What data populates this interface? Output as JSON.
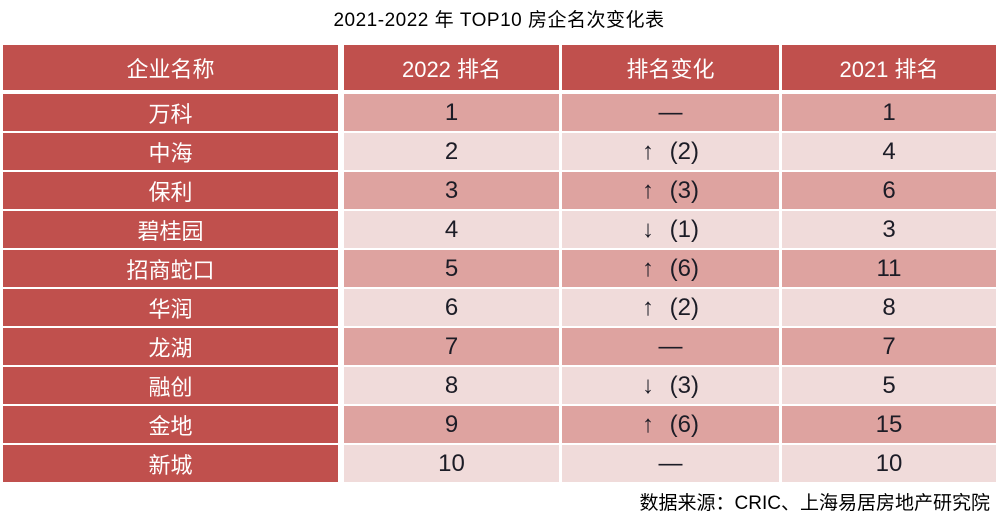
{
  "chart_data": {
    "type": "table",
    "title": "2021-2022 年 TOP10 房企名次变化表",
    "columns": [
      "企业名称",
      "2022 排名",
      "排名变化",
      "2021 排名"
    ],
    "rows": [
      {
        "name": "万科",
        "rank_2022": "1",
        "change": "—",
        "rank_2021": "1"
      },
      {
        "name": "中海",
        "rank_2022": "2",
        "change": "↑ (2)",
        "rank_2021": "4"
      },
      {
        "name": "保利",
        "rank_2022": "3",
        "change": "↑ (3)",
        "rank_2021": "6"
      },
      {
        "name": "碧桂园",
        "rank_2022": "4",
        "change": "↓ (1)",
        "rank_2021": "3"
      },
      {
        "name": "招商蛇口",
        "rank_2022": "5",
        "change": "↑ (6)",
        "rank_2021": "11"
      },
      {
        "name": "华润",
        "rank_2022": "6",
        "change": "↑ (2)",
        "rank_2021": "8"
      },
      {
        "name": "龙湖",
        "rank_2022": "7",
        "change": "—",
        "rank_2021": "7"
      },
      {
        "name": "融创",
        "rank_2022": "8",
        "change": "↓ (3)",
        "rank_2021": "5"
      },
      {
        "name": "金地",
        "rank_2022": "9",
        "change": "↑ (6)",
        "rank_2021": "15"
      },
      {
        "name": "新城",
        "rank_2022": "10",
        "change": "—",
        "rank_2021": "10"
      }
    ],
    "source_note": "数据来源：CRIC、上海易居房地产研究院",
    "layout": {
      "row_banding": [
        "medium",
        "light"
      ],
      "header_position": "top"
    }
  },
  "colors": {
    "header_red": "#C0504D",
    "row_band_medium": "#DEA3A0",
    "row_band_light": "#F0DBDA",
    "header_text": "#FFFFFF",
    "body_text": "#1C1C26"
  }
}
